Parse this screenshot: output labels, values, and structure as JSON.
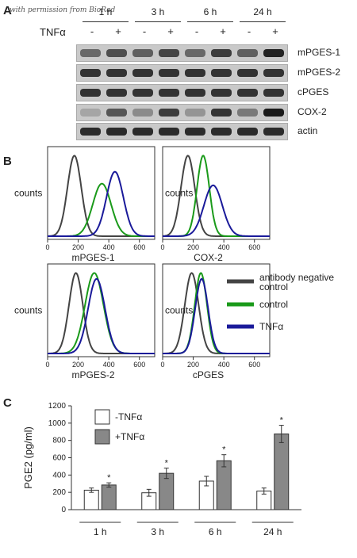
{
  "watermark": "with permission from BioRad",
  "panels": {
    "a": "A",
    "b": "B",
    "c": "C"
  },
  "blot": {
    "timepoints": [
      "1 h",
      "3 h",
      "6 h",
      "24 h"
    ],
    "tnf_label": "TNFα",
    "signs": [
      "-",
      "+",
      "-",
      "+",
      "-",
      "+",
      "-",
      "+"
    ],
    "rows": [
      {
        "name": "mPGES-1",
        "intensity": [
          0.55,
          0.7,
          0.6,
          0.75,
          0.55,
          0.8,
          0.6,
          0.95
        ]
      },
      {
        "name": "mPGES-2",
        "intensity": [
          0.85,
          0.85,
          0.85,
          0.85,
          0.85,
          0.85,
          0.85,
          0.85
        ]
      },
      {
        "name": "cPGES",
        "intensity": [
          0.85,
          0.85,
          0.85,
          0.85,
          0.85,
          0.85,
          0.85,
          0.85
        ]
      },
      {
        "name": "COX-2",
        "intensity": [
          0.2,
          0.65,
          0.35,
          0.8,
          0.3,
          0.85,
          0.45,
          1.0
        ]
      },
      {
        "name": "actin",
        "intensity": [
          0.9,
          0.9,
          0.9,
          0.9,
          0.9,
          0.9,
          0.9,
          0.9
        ]
      }
    ]
  },
  "flow": {
    "y_label": "counts",
    "x_ticks": [
      "0",
      "200",
      "400",
      "600"
    ],
    "plots": [
      {
        "xlabel": "mPGES-1",
        "peaks": {
          "negative": 175,
          "control": 355,
          "tnf": 440
        }
      },
      {
        "xlabel": "COX-2",
        "peaks": {
          "negative": 165,
          "control": 265,
          "tnf": 330
        }
      },
      {
        "xlabel": "mPGES-2",
        "peaks": {
          "negative": 185,
          "control": 305,
          "tnf": 320
        }
      },
      {
        "xlabel": "cPGES",
        "peaks": {
          "negative": 190,
          "control": 250,
          "tnf": 255
        }
      }
    ],
    "legend": [
      {
        "label": "antibody negative control",
        "color": "#444444"
      },
      {
        "label": "control",
        "color": "#1a9a1a"
      },
      {
        "label": "TNFα",
        "color": "#1a1a9a"
      }
    ]
  },
  "chart_data": {
    "type": "bar",
    "categories": [
      "1 h",
      "3 h",
      "6 h",
      "24 h"
    ],
    "ylabel": "PGE2 (pg/ml)",
    "ylim": [
      0,
      1200
    ],
    "yticks": [
      0,
      200,
      400,
      600,
      800,
      1000,
      1200
    ],
    "series": [
      {
        "name": "-TNFα",
        "color": "#ffffff",
        "values": [
          225,
          195,
          330,
          215
        ],
        "errors": [
          25,
          40,
          55,
          35
        ],
        "significant": [
          false,
          false,
          false,
          false
        ]
      },
      {
        "name": "+TNFα",
        "color": "#888888",
        "values": [
          285,
          420,
          565,
          875
        ],
        "errors": [
          25,
          60,
          70,
          100
        ],
        "significant": [
          true,
          true,
          true,
          true
        ]
      }
    ],
    "significance_mark": "*",
    "legend_position": "top-left"
  }
}
